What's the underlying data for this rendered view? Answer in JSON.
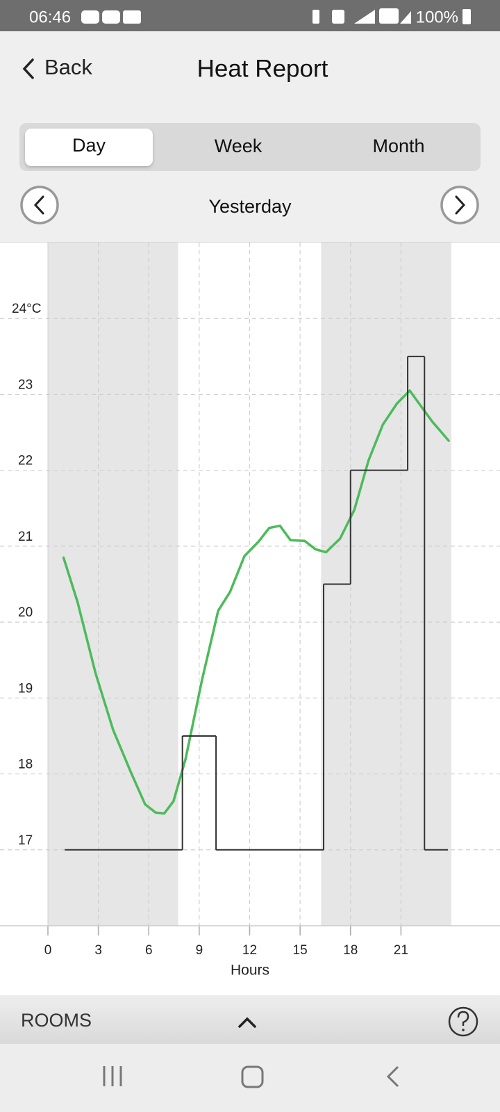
{
  "status_bar": {
    "time": "06:46",
    "battery": "100%"
  },
  "header": {
    "back": "Back",
    "title": "Heat Report"
  },
  "tabs": [
    "Day",
    "Week",
    "Month"
  ],
  "date_nav": {
    "label": "Yesterday"
  },
  "chart_data": {
    "type": "line",
    "xlabel": "Hours",
    "xlim": [
      0,
      24
    ],
    "xticks": [
      0,
      3,
      6,
      9,
      12,
      15,
      18,
      21
    ],
    "ylim": [
      16,
      25
    ],
    "yticks": [
      17,
      18,
      19,
      20,
      21,
      22,
      23,
      {
        "value": 24,
        "label": "24°C"
      }
    ],
    "grid": true,
    "shaded_ranges": [
      [
        0,
        7.75
      ],
      [
        16.25,
        24
      ]
    ],
    "series": [
      {
        "color": "#4cbb5a",
        "x": [
          0.93,
          1.77,
          2.83,
          3.88,
          4.94,
          5.78,
          6.41,
          6.92,
          7.47,
          8.19,
          9.16,
          10.13,
          10.84,
          11.69,
          12.53,
          13.16,
          13.8,
          14.43,
          15.27,
          15.91,
          16.54,
          17.38,
          18.23,
          19.07,
          19.92,
          20.76,
          21.52,
          22.24,
          22.87,
          23.84
        ],
        "values": [
          20.85,
          20.26,
          19.33,
          18.58,
          18.02,
          17.6,
          17.49,
          17.48,
          17.64,
          18.2,
          19.23,
          20.15,
          20.4,
          20.87,
          21.06,
          21.24,
          21.27,
          21.08,
          21.07,
          20.96,
          20.92,
          21.1,
          21.48,
          22.13,
          22.6,
          22.88,
          23.05,
          22.83,
          22.64,
          22.39
        ]
      },
      {
        "color": "#333333",
        "step": "post",
        "x": [
          1,
          8,
          10,
          16.4,
          18,
          21.4,
          22.4
        ],
        "x_end": 23.8,
        "values": [
          17,
          18.5,
          17,
          20.5,
          22,
          23.5,
          17
        ]
      }
    ]
  },
  "footer": {
    "rooms": "ROOMS"
  }
}
